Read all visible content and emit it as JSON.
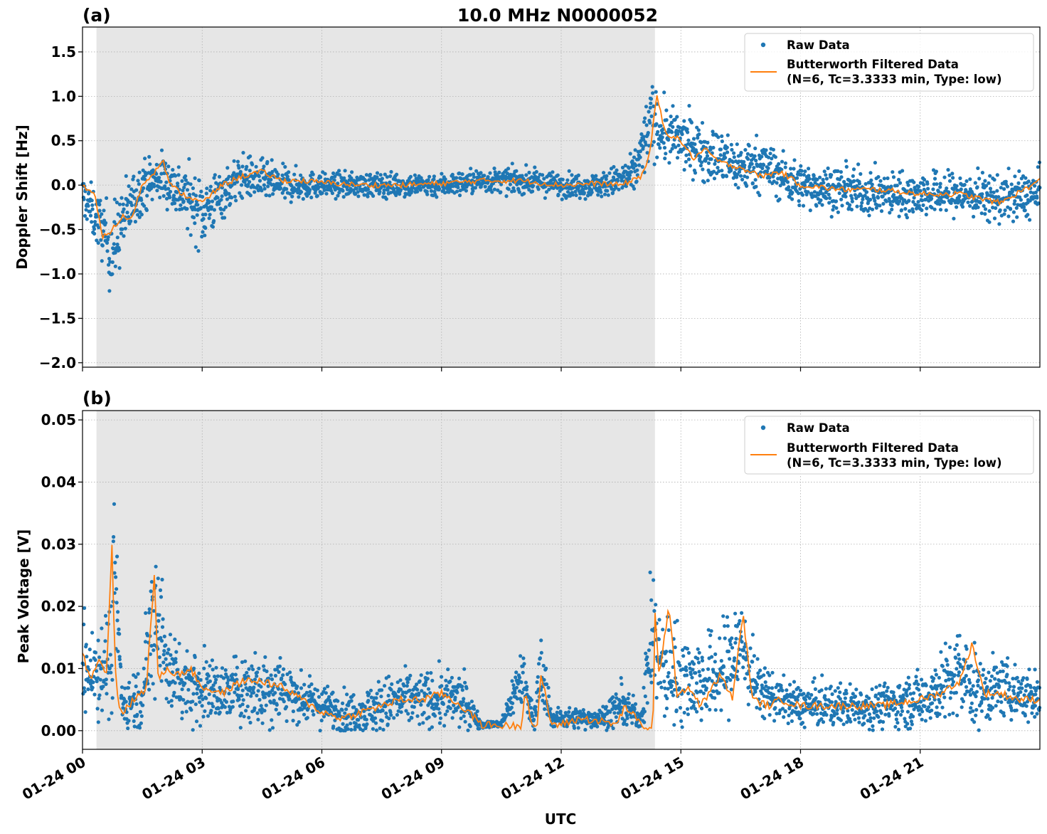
{
  "figure": {
    "title": "10.0 MHz N0000052",
    "xlabel": "UTC"
  },
  "colors": {
    "raw": "#1f77b4",
    "filtered": "#ff7f0e",
    "shade": "#e6e6e6",
    "grid": "#b0b0b0"
  },
  "legend": {
    "raw_label": "Raw Data",
    "filtered_line1": "Butterworth Filtered Data",
    "filtered_line2": "(N=6, Tc=3.3333 min, Type: low)"
  },
  "chart_data": [
    {
      "type": "scatter",
      "panel_label": "(a)",
      "ylabel": "Doppler Shift [Hz]",
      "xlim": [
        0,
        24
      ],
      "ylim": [
        -2.05,
        1.78
      ],
      "yticks": [
        -2.0,
        -1.5,
        -1.0,
        -0.5,
        0.0,
        0.5,
        1.0,
        1.5
      ],
      "ytick_labels": [
        "−2.0",
        "−1.5",
        "−1.0",
        "−0.5",
        "0.0",
        "0.5",
        "1.0",
        "1.5"
      ],
      "xticks": [
        0,
        3,
        6,
        9,
        12,
        15,
        18,
        21
      ],
      "xtick_labels": [
        "01-24 00",
        "01-24 03",
        "01-24 06",
        "01-24 09",
        "01-24 12",
        "01-24 15",
        "01-24 18",
        "01-24 21"
      ],
      "grid": true,
      "legend_position": "top-right",
      "shaded_span": [
        0.35,
        14.35
      ],
      "x_unit": "hours UTC on 01-24",
      "series": [
        {
          "name": "Raw Data",
          "style": "points",
          "color": "#1f77b4",
          "x": [
            0,
            0.5,
            0.75,
            1.0,
            1.5,
            2.0,
            2.5,
            3.0,
            3.5,
            4.0,
            4.5,
            5.0,
            6.0,
            7.0,
            8.0,
            9.0,
            10.0,
            11.0,
            12.0,
            13.0,
            13.8,
            14.1,
            14.3,
            14.5,
            15.0,
            15.5,
            16.0,
            16.5,
            17.0,
            17.5,
            18.0,
            19.0,
            20.0,
            21.0,
            22.0,
            23.0,
            24.0
          ],
          "y": [
            -0.1,
            -0.5,
            -0.75,
            -0.4,
            0.0,
            0.1,
            -0.1,
            -0.3,
            -0.1,
            0.1,
            0.05,
            0.0,
            0.0,
            0.0,
            0.0,
            0.0,
            0.05,
            0.05,
            0.0,
            0.0,
            0.1,
            0.5,
            0.75,
            0.6,
            0.5,
            0.4,
            0.3,
            0.2,
            0.25,
            0.1,
            0.0,
            -0.05,
            -0.1,
            -0.1,
            -0.1,
            -0.15,
            -0.1
          ],
          "spread": [
            0.2,
            0.3,
            0.45,
            0.35,
            0.25,
            0.25,
            0.3,
            0.35,
            0.25,
            0.22,
            0.2,
            0.18,
            0.12,
            0.12,
            0.12,
            0.12,
            0.12,
            0.12,
            0.12,
            0.12,
            0.2,
            0.35,
            0.35,
            0.3,
            0.28,
            0.28,
            0.28,
            0.26,
            0.26,
            0.24,
            0.22,
            0.22,
            0.22,
            0.22,
            0.22,
            0.24,
            0.24
          ]
        },
        {
          "name": "Butterworth Filtered Data (N=6, Tc=3.3333 min, Type: low)",
          "style": "line",
          "color": "#ff7f0e",
          "x": [
            0,
            0.3,
            0.5,
            0.75,
            1.0,
            1.2,
            1.5,
            1.8,
            2.0,
            2.2,
            2.5,
            3.0,
            3.5,
            4.0,
            4.5,
            5.0,
            5.5,
            6.0,
            7.0,
            8.0,
            9.0,
            10.0,
            11.0,
            12.0,
            13.0,
            13.5,
            14.0,
            14.2,
            14.4,
            14.6,
            15.0,
            15.3,
            15.6,
            16.0,
            16.5,
            17.0,
            17.5,
            18.0,
            19.0,
            20.0,
            21.0,
            22.0,
            23.0,
            24.0
          ],
          "y": [
            0.0,
            -0.1,
            -0.6,
            -0.5,
            -0.35,
            -0.4,
            0.0,
            0.15,
            0.3,
            0.0,
            -0.1,
            -0.2,
            0.0,
            0.1,
            0.15,
            0.05,
            0.05,
            0.03,
            0.0,
            0.0,
            0.02,
            0.05,
            0.05,
            0.0,
            0.02,
            0.0,
            0.1,
            0.3,
            1.0,
            0.6,
            0.5,
            0.3,
            0.4,
            0.25,
            0.2,
            0.1,
            0.15,
            0.0,
            -0.05,
            -0.05,
            -0.1,
            -0.1,
            -0.2,
            0.05
          ]
        }
      ]
    },
    {
      "type": "scatter",
      "panel_label": "(b)",
      "ylabel": "Peak Voltage [V]",
      "xlim": [
        0,
        24
      ],
      "ylim": [
        -0.003,
        0.0515
      ],
      "yticks": [
        0.0,
        0.01,
        0.02,
        0.03,
        0.04,
        0.05
      ],
      "ytick_labels": [
        "0.00",
        "0.01",
        "0.02",
        "0.03",
        "0.04",
        "0.05"
      ],
      "xticks": [
        0,
        3,
        6,
        9,
        12,
        15,
        18,
        21
      ],
      "xtick_labels": [
        "01-24 00",
        "01-24 03",
        "01-24 06",
        "01-24 09",
        "01-24 12",
        "01-24 15",
        "01-24 18",
        "01-24 21"
      ],
      "grid": true,
      "legend_position": "top-right",
      "shaded_span": [
        0.35,
        14.35
      ],
      "x_unit": "hours UTC on 01-24",
      "series": [
        {
          "name": "Raw Data",
          "style": "points",
          "color": "#1f77b4",
          "x": [
            0,
            0.4,
            0.75,
            0.8,
            1.0,
            1.5,
            1.85,
            2.2,
            2.5,
            3.0,
            3.5,
            4.0,
            4.5,
            5.0,
            5.5,
            6.0,
            6.5,
            7.0,
            7.5,
            8.0,
            8.5,
            9.0,
            9.5,
            10.0,
            10.5,
            11.0,
            11.3,
            11.5,
            11.75,
            12.0,
            12.5,
            13.0,
            13.5,
            14.0,
            14.3,
            14.5,
            15.0,
            15.5,
            16.0,
            16.5,
            16.9,
            17.5,
            18.0,
            19.0,
            20.0,
            21.0,
            21.5,
            22.0,
            22.5,
            23.0,
            24.0
          ],
          "y": [
            0.01,
            0.01,
            0.012,
            0.028,
            0.004,
            0.006,
            0.02,
            0.009,
            0.008,
            0.007,
            0.006,
            0.007,
            0.007,
            0.007,
            0.005,
            0.004,
            0.003,
            0.003,
            0.004,
            0.005,
            0.005,
            0.005,
            0.005,
            0.001,
            0.001,
            0.009,
            0.002,
            0.009,
            0.002,
            0.002,
            0.002,
            0.002,
            0.004,
            0.002,
            0.016,
            0.01,
            0.009,
            0.008,
            0.009,
            0.014,
            0.007,
            0.005,
            0.004,
            0.004,
            0.004,
            0.005,
            0.007,
            0.009,
            0.006,
            0.007,
            0.005
          ],
          "spread": [
            0.007,
            0.007,
            0.008,
            0.012,
            0.003,
            0.005,
            0.012,
            0.006,
            0.006,
            0.005,
            0.004,
            0.005,
            0.006,
            0.005,
            0.003,
            0.003,
            0.003,
            0.003,
            0.004,
            0.004,
            0.004,
            0.004,
            0.004,
            0.0005,
            0.0005,
            0.005,
            0.001,
            0.008,
            0.001,
            0.0015,
            0.0015,
            0.0015,
            0.003,
            0.0015,
            0.01,
            0.008,
            0.007,
            0.006,
            0.007,
            0.008,
            0.004,
            0.003,
            0.003,
            0.003,
            0.003,
            0.004,
            0.005,
            0.007,
            0.005,
            0.004,
            0.004
          ]
        },
        {
          "name": "Butterworth Filtered Data (N=6, Tc=3.3333 min, Type: low)",
          "style": "line",
          "color": "#ff7f0e",
          "x": [
            0,
            0.2,
            0.4,
            0.6,
            0.75,
            0.8,
            0.9,
            1.0,
            1.3,
            1.6,
            1.8,
            1.9,
            2.1,
            2.4,
            2.7,
            3.0,
            3.5,
            4.0,
            4.5,
            5.0,
            5.5,
            6.0,
            6.5,
            7.0,
            7.5,
            8.0,
            8.5,
            9.0,
            9.5,
            10.0,
            10.5,
            11.0,
            11.1,
            11.25,
            11.4,
            11.5,
            11.75,
            11.9,
            12.0,
            12.5,
            13.0,
            13.4,
            13.6,
            14.0,
            14.3,
            14.35,
            14.45,
            14.7,
            14.9,
            15.2,
            15.5,
            16.0,
            16.3,
            16.55,
            16.8,
            17.2,
            17.5,
            18.0,
            19.0,
            20.0,
            21.0,
            21.5,
            22.0,
            22.3,
            22.6,
            23.0,
            23.5,
            24.0
          ],
          "y": [
            0.0125,
            0.008,
            0.012,
            0.009,
            0.032,
            0.012,
            0.004,
            0.003,
            0.005,
            0.007,
            0.025,
            0.008,
            0.01,
            0.009,
            0.01,
            0.007,
            0.006,
            0.008,
            0.008,
            0.007,
            0.005,
            0.003,
            0.002,
            0.003,
            0.004,
            0.005,
            0.005,
            0.006,
            0.004,
            0.001,
            0.0008,
            0.0008,
            0.007,
            0.001,
            0.001,
            0.009,
            0.001,
            0.001,
            0.001,
            0.002,
            0.0015,
            0.001,
            0.004,
            0.001,
            0.0,
            0.019,
            0.009,
            0.02,
            0.006,
            0.007,
            0.004,
            0.009,
            0.005,
            0.019,
            0.005,
            0.004,
            0.005,
            0.004,
            0.004,
            0.004,
            0.005,
            0.006,
            0.008,
            0.014,
            0.006,
            0.006,
            0.005,
            0.005
          ]
        }
      ]
    }
  ]
}
